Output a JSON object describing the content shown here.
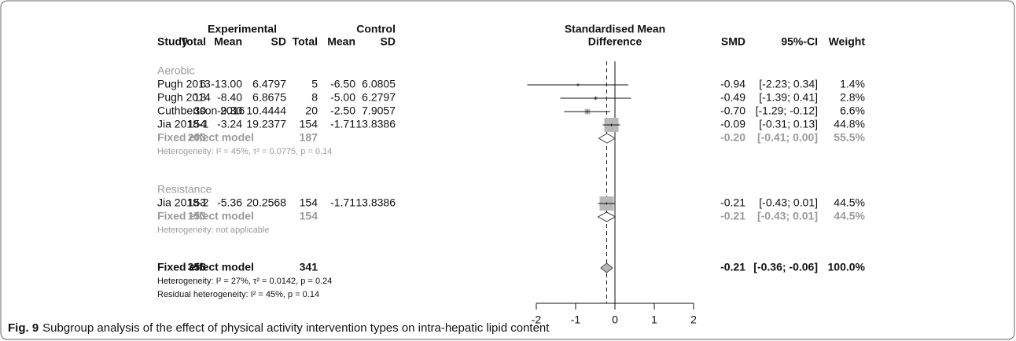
{
  "chart_data": {
    "type": "forest",
    "header": {
      "experimental": "Experimental",
      "control": "Control",
      "effect": [
        "Standardised Mean",
        "Difference"
      ],
      "columns": [
        "Study",
        "Total",
        "Mean",
        "SD",
        "Total",
        "Mean",
        "SD",
        "SMD",
        "95%-CI",
        "Weight"
      ]
    },
    "subgroups": [
      {
        "name": "Aerobic",
        "studies": [
          {
            "study": "Pugh 2013",
            "exp_total": 6,
            "exp_mean": "-13.00",
            "exp_sd": "6.4797",
            "ctrl_total": 5,
            "ctrl_mean": "-6.50",
            "ctrl_sd": "6.0805",
            "smd": -0.94,
            "ci": [
              -2.23,
              0.34
            ],
            "weight": 1.4,
            "value_labels": {
              "ci": "[-2.23; 0.34]",
              "weight": "1.4%"
            }
          },
          {
            "study": "Pugh 2014",
            "exp_total": 13,
            "exp_mean": "-8.40",
            "exp_sd": "6.8675",
            "ctrl_total": 8,
            "ctrl_mean": "-5.00",
            "ctrl_sd": "6.2797",
            "smd": -0.49,
            "ci": [
              -1.39,
              0.41
            ],
            "weight": 2.8,
            "value_labels": {
              "ci": "[-1.39; 0.41]",
              "weight": "2.8%"
            }
          },
          {
            "study": "Cuthbertson 2016",
            "exp_total": 30,
            "exp_mean": "-9.30",
            "exp_sd": "10.4444",
            "ctrl_total": 20,
            "ctrl_mean": "-2.50",
            "ctrl_sd": "7.9057",
            "smd": -0.7,
            "ci": [
              -1.29,
              -0.12
            ],
            "weight": 6.6,
            "value_labels": {
              "smd": "-0.70",
              "ci": "[-1.29; -0.12]",
              "weight": "6.6%"
            }
          },
          {
            "study": "Jia 2018-1",
            "exp_total": 154,
            "exp_mean": "-3.24",
            "exp_sd": "19.2377",
            "ctrl_total": 154,
            "ctrl_mean": "-1.71",
            "ctrl_sd": "13.8386",
            "smd": -0.09,
            "ci": [
              -0.31,
              0.13
            ],
            "weight": 44.8,
            "value_labels": {
              "ci": "[-0.31; 0.13]",
              "weight": "44.8%"
            }
          }
        ],
        "pooled": {
          "label": "Fixed effect model",
          "exp_total": 203,
          "ctrl_total": 187,
          "smd": -0.2,
          "ci": [
            -0.41,
            0
          ],
          "value_labels": {
            "smd": "-0.20",
            "ci": "[-0.41; 0.00]",
            "weight": "55.5%"
          }
        },
        "heterogeneity": "Heterogeneity: I² = 45%, τ² = 0.0775, p = 0.14"
      },
      {
        "name": "Resistance",
        "studies": [
          {
            "study": "Jia 2018-2",
            "exp_total": 153,
            "exp_mean": "-5.36",
            "exp_sd": "20.2568",
            "ctrl_total": 154,
            "ctrl_mean": "-1.71",
            "ctrl_sd": "13.8386",
            "smd": -0.21,
            "ci": [
              -0.43,
              0.01
            ],
            "weight": 44.5,
            "value_labels": {
              "ci": "[-0.43; 0.01]",
              "weight": "44.5%"
            }
          }
        ],
        "pooled": {
          "label": "Fixed effect model",
          "exp_total": 153,
          "ctrl_total": 154,
          "smd": -0.21,
          "ci": [
            -0.43,
            0.01
          ],
          "value_labels": {
            "ci": "[-0.43; 0.01]",
            "weight": "44.5%"
          }
        },
        "heterogeneity": "Heterogeneity: not applicable"
      }
    ],
    "overall": {
      "label": "Fixed effect model",
      "exp_total": 356,
      "ctrl_total": 341,
      "smd": -0.21,
      "ci": [
        -0.36,
        -0.06
      ],
      "value_labels": {
        "ci": "[-0.36; -0.06]",
        "weight": "100.0%"
      },
      "heterogeneity": "Heterogeneity: I² = 27%, τ² = 0.0142, p = 0.24",
      "residual": "Residual heterogeneity: I² = 45%, p = 0.14"
    },
    "xlim": [
      -2,
      2
    ],
    "xticks": [
      -2,
      -1,
      0,
      1,
      2
    ],
    "colors": {
      "square": "#b8b8b8",
      "line": "#111111",
      "overall_diamond": "#b8b8b8"
    },
    "caption": {
      "label": "Fig. 9",
      "text": "Subgroup analysis of the effect of physical activity intervention types on intra-hepatic lipid content"
    }
  }
}
